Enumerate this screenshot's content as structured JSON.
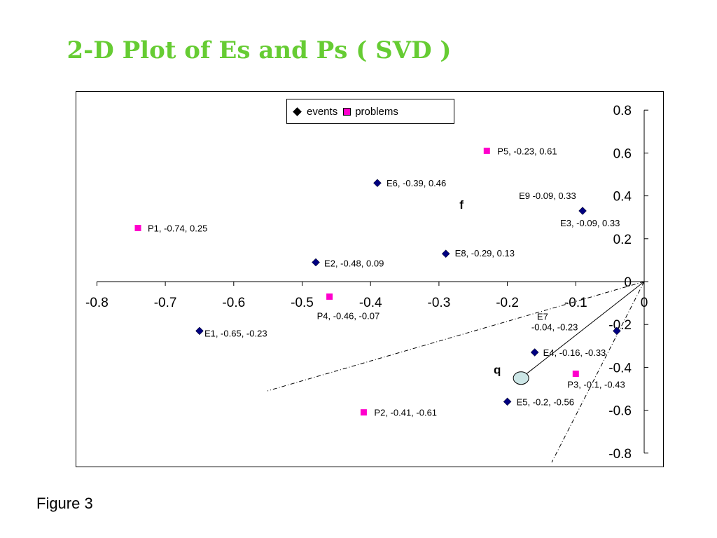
{
  "title": "2-D Plot of Es and Ps ( SVD )",
  "caption": "Figure 3",
  "colors": {
    "title": "#66cc33",
    "events": "#000080",
    "problems": "#ff00cc"
  },
  "chart_data": {
    "type": "scatter",
    "xlim": [
      -0.8,
      0
    ],
    "ylim": [
      -0.8,
      0.8
    ],
    "x_ticks": [
      "-0.8",
      "-0.7",
      "-0.6",
      "-0.5",
      "-0.4",
      "-0.3",
      "-0.2",
      "-0.1",
      "0"
    ],
    "y_ticks": [
      "0.8",
      "0.6",
      "0.4",
      "0.2",
      "0",
      "-0.2",
      "-0.4",
      "-0.6",
      "-0.8"
    ],
    "grid": false,
    "legend_position": "top",
    "series": [
      {
        "name": "events",
        "marker": "diamond",
        "points": [
          {
            "label": "E1, -0.65, -0.23",
            "x": -0.65,
            "y": -0.23
          },
          {
            "label": "E2, -0.48, 0.09",
            "x": -0.48,
            "y": 0.09
          },
          {
            "label": "E3, -0.09, 0.33",
            "x": -0.09,
            "y": 0.33
          },
          {
            "label": "E4, -0.16, -0.33",
            "x": -0.16,
            "y": -0.33
          },
          {
            "label": "E5, -0.2, -0.56",
            "x": -0.2,
            "y": -0.56
          },
          {
            "label": "E6, -0.39, 0.46",
            "x": -0.39,
            "y": 0.46
          },
          {
            "label": "E7 -0.04, -0.23",
            "x": -0.04,
            "y": -0.23
          },
          {
            "label": "E8, -0.29, 0.13",
            "x": -0.29,
            "y": 0.13
          },
          {
            "label": "E9 -0.09, 0.33",
            "x": -0.09,
            "y": 0.33
          }
        ]
      },
      {
        "name": "problems",
        "marker": "square",
        "points": [
          {
            "label": "P1, -0.74, 0.25",
            "x": -0.74,
            "y": 0.25
          },
          {
            "label": "P2, -0.41, -0.61",
            "x": -0.41,
            "y": -0.61
          },
          {
            "label": "P3, -0.1, -0.43",
            "x": -0.1,
            "y": -0.43
          },
          {
            "label": "P4, -0.46, -0.07",
            "x": -0.46,
            "y": -0.07
          },
          {
            "label": "P5, -0.23, 0.61",
            "x": -0.23,
            "y": 0.61
          }
        ]
      }
    ],
    "annotations": [
      {
        "text": "f",
        "x": -0.27,
        "y": 0.34
      },
      {
        "text": "q",
        "x": -0.22,
        "y": -0.43
      }
    ],
    "query_point": {
      "x": -0.18,
      "y": -0.45
    }
  }
}
